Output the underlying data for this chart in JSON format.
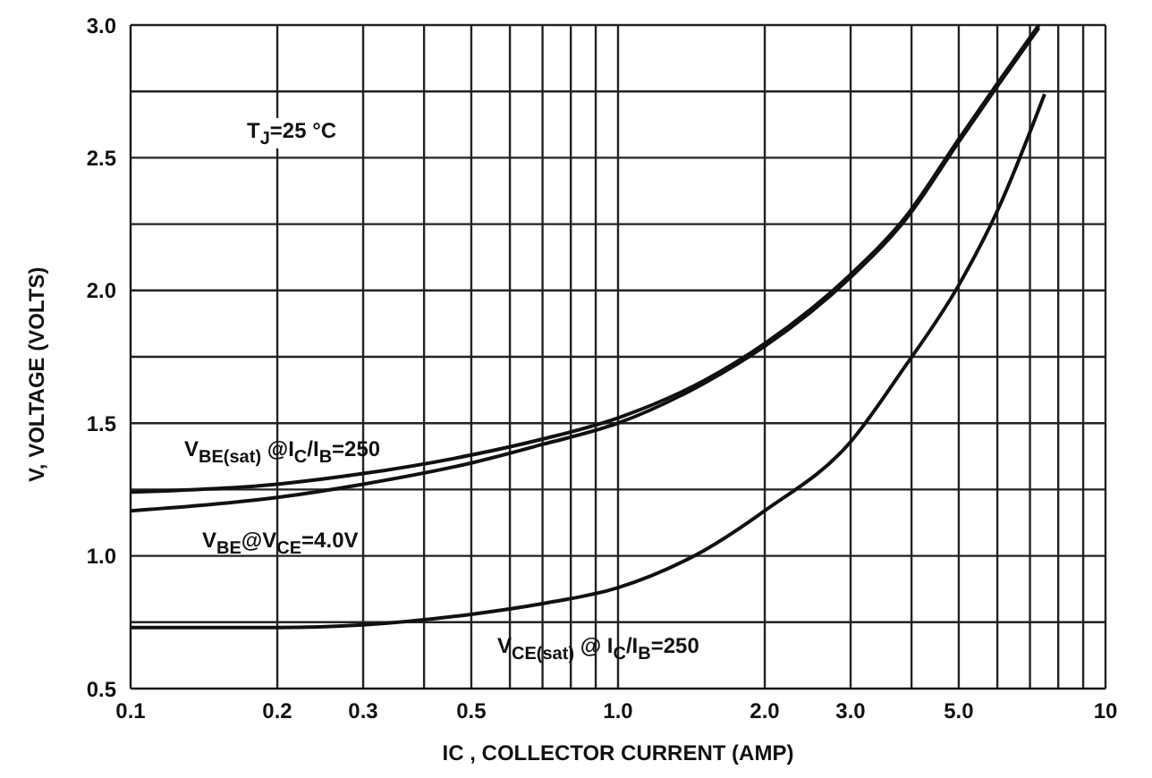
{
  "chart_data": {
    "type": "line",
    "xlabel": "IC , COLLECTOR CURRENT (AMP)",
    "ylabel": "V, VOLTAGE (VOLTS)",
    "annotations": [
      "T$_{J}$=25 °C"
    ],
    "log": "x",
    "grid": true,
    "legend": false,
    "marker": "none",
    "line_style": "solid",
    "xlim": [
      0.1,
      10
    ],
    "ylim": [
      0.5,
      3.0
    ],
    "xticks": [
      0.1,
      0.2,
      0.3,
      {
        "value": 0.4,
        "label": null
      },
      0.5,
      {
        "value": 0.6,
        "label": null
      },
      {
        "value": 0.7,
        "label": null
      },
      {
        "value": 0.8,
        "label": null
      },
      {
        "value": 0.9,
        "label": null
      },
      {
        "value": 1,
        "label": "1.0"
      },
      {
        "value": 2,
        "label": "2.0"
      },
      {
        "value": 3,
        "label": "3.0"
      },
      {
        "value": 4,
        "label": null
      },
      {
        "value": 5,
        "label": "5.0"
      },
      {
        "value": 6,
        "label": null
      },
      {
        "value": 7,
        "label": null
      },
      {
        "value": 8,
        "label": null
      },
      {
        "value": 9,
        "label": null
      },
      10
    ],
    "yticks": [
      0.5,
      {
        "value": 0.75,
        "label": null
      },
      {
        "value": 1,
        "label": "1.0"
      },
      {
        "value": 1.25,
        "label": null
      },
      1.5,
      {
        "value": 1.75,
        "label": null
      },
      {
        "value": 2,
        "label": "2.0"
      },
      {
        "value": 2.25,
        "label": null
      },
      2.5,
      {
        "value": 2.75,
        "label": null
      },
      {
        "value": 3,
        "label": "3.0"
      }
    ],
    "series": [
      {
        "name": "V$_{BE(sat)}$ @I$_{C}$/I$_{B}$=250",
        "color": "#111111",
        "x": [
          0.1,
          0.2,
          0.3,
          0.5,
          0.7,
          1,
          1.5,
          2,
          3,
          3.9,
          5,
          6,
          7.3
        ],
        "values": [
          1.24,
          1.27,
          1.31,
          1.38,
          1.44,
          1.52,
          1.66,
          1.8,
          2.06,
          2.28,
          2.57,
          2.78,
          3.0
        ]
      },
      {
        "name": "V$_{BE}$@V$_{CE}$=4.0V",
        "color": "#111111",
        "x": [
          0.1,
          0.2,
          0.3,
          0.5,
          0.7,
          1,
          1.5,
          2,
          3,
          3.9,
          5,
          6,
          7.3
        ],
        "values": [
          1.17,
          1.22,
          1.27,
          1.35,
          1.42,
          1.5,
          1.65,
          1.79,
          2.05,
          2.27,
          2.56,
          2.77,
          2.99
        ]
      },
      {
        "name": "V$_{CE(sat)}$ @ I$_{C}$/I$_{B}$=250",
        "color": "#111111",
        "x": [
          0.1,
          0.2,
          0.3,
          0.5,
          0.7,
          1,
          1.5,
          2,
          3,
          3.8,
          5,
          6,
          7.5
        ],
        "values": [
          0.73,
          0.73,
          0.74,
          0.78,
          0.82,
          0.88,
          1.02,
          1.17,
          1.43,
          1.69,
          2.02,
          2.3,
          2.74
        ]
      }
    ]
  }
}
